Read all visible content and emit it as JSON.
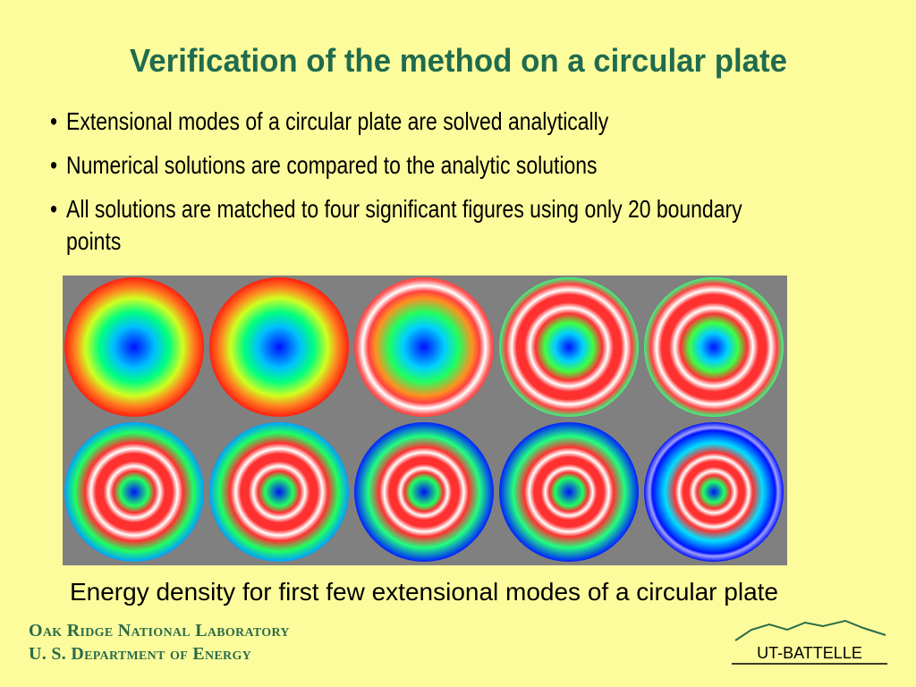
{
  "title": "Verification of the method on a circular plate",
  "bullets": [
    "Extensional modes of a circular plate are solved analytically",
    "Numerical solutions are compared to the analytic solutions",
    "All solutions are matched to four significant figures using only 20 boundary points"
  ],
  "caption": "Energy density for first few extensional modes of a circular plate",
  "footer": {
    "line1": "Oak Ridge National Laboratory",
    "line2": "U. S. Department of Energy"
  },
  "logo": "UT-BATTELLE"
}
